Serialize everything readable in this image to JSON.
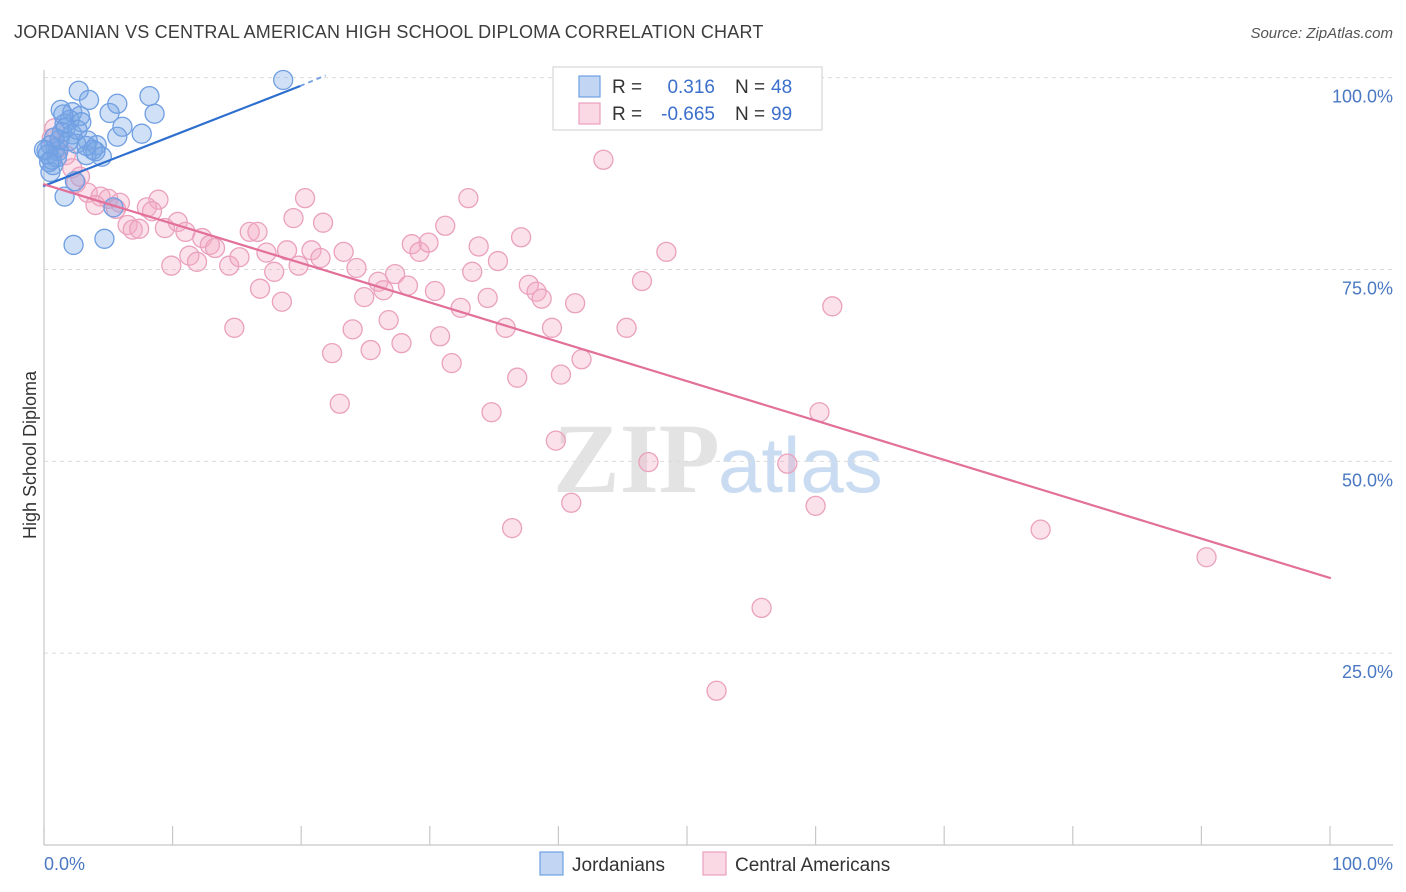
{
  "source": "Source: ZipAtlas.com",
  "watermark": {
    "zip": "ZIP",
    "atlas": "atlas"
  },
  "chart_data": {
    "type": "scatter",
    "title": "JORDANIAN VS CENTRAL AMERICAN HIGH SCHOOL DIPLOMA CORRELATION CHART",
    "xlabel": "",
    "ylabel": "High School Diploma",
    "xlim": [
      0,
      104.9
    ],
    "ylim": [
      0,
      101
    ],
    "grid": true,
    "x_ticks": [
      0,
      10,
      20,
      30,
      40,
      50,
      60,
      70,
      80,
      90,
      100
    ],
    "x_tick_labels": [
      {
        "value": 0,
        "label": "0.0%"
      },
      {
        "value": 100,
        "label": "100.0%"
      }
    ],
    "y_ticks": [
      {
        "value": 100,
        "label": "100.0%"
      },
      {
        "value": 75,
        "label": "75.0%"
      },
      {
        "value": 50,
        "label": "50.0%"
      },
      {
        "value": 25,
        "label": "25.0%"
      }
    ],
    "stats_labels": {
      "r": "R =",
      "n": "N ="
    },
    "series": [
      {
        "name": "Jordanians",
        "color": "#6f9fe2",
        "fill": "rgba(120,165,230,0.35)",
        "line_color": "#2d6fcf",
        "r": "0.316",
        "n": "48",
        "trend": {
          "start": [
            0,
            85.9
          ],
          "end": [
            19.9,
            98.9
          ],
          "dashed_end": [
            21.9,
            100.3
          ]
        },
        "points": [
          [
            18.6,
            99.7
          ],
          [
            2.7,
            98.3
          ],
          [
            8.2,
            97.6
          ],
          [
            3.5,
            97.1
          ],
          [
            5.7,
            96.6
          ],
          [
            1.3,
            95.8
          ],
          [
            2.2,
            95.5
          ],
          [
            5.1,
            95.4
          ],
          [
            8.6,
            95.3
          ],
          [
            2.8,
            95.0
          ],
          [
            2.0,
            94.5
          ],
          [
            1.6,
            94.0
          ],
          [
            2.9,
            94.2
          ],
          [
            6.1,
            93.6
          ],
          [
            1.4,
            92.9
          ],
          [
            5.7,
            92.3
          ],
          [
            7.6,
            92.7
          ],
          [
            2.2,
            92.6
          ],
          [
            3.4,
            91.8
          ],
          [
            2.5,
            91.4
          ],
          [
            4.1,
            91.2
          ],
          [
            0.5,
            91.2
          ],
          [
            0.9,
            90.8
          ],
          [
            3.8,
            90.6
          ],
          [
            0.2,
            90.5
          ],
          [
            3.3,
            89.9
          ],
          [
            4.5,
            89.7
          ],
          [
            1.1,
            90.4
          ],
          [
            0.7,
            88.6
          ],
          [
            0.5,
            87.7
          ],
          [
            2.4,
            86.5
          ],
          [
            1.6,
            84.5
          ],
          [
            5.4,
            83.1
          ],
          [
            4.7,
            79.0
          ],
          [
            2.3,
            78.2
          ],
          [
            0.6,
            89.3
          ],
          [
            1.2,
            91.9
          ],
          [
            0.3,
            90.0
          ],
          [
            0.8,
            92.2
          ],
          [
            1.7,
            93.5
          ],
          [
            4.0,
            90.4
          ],
          [
            1.9,
            91.7
          ],
          [
            1.0,
            89.6
          ],
          [
            0.0,
            90.6
          ],
          [
            0.4,
            89.0
          ],
          [
            2.6,
            93.2
          ],
          [
            1.5,
            95.2
          ],
          [
            3.3,
            91.1
          ]
        ]
      },
      {
        "name": "Central Americans",
        "color": "#eaa1bd",
        "fill": "rgba(244,170,196,0.35)",
        "line_color": "#e27099",
        "r": "-0.665",
        "n": "99",
        "trend": {
          "start": [
            0,
            86.1
          ],
          "end": [
            100,
            34.8
          ]
        },
        "points": [
          [
            49.1,
            99.7
          ],
          [
            43.0,
            96.2
          ],
          [
            43.5,
            89.3
          ],
          [
            0.6,
            92.1
          ],
          [
            1.1,
            90.8
          ],
          [
            1.7,
            89.9
          ],
          [
            2.2,
            88.2
          ],
          [
            2.8,
            87.1
          ],
          [
            2.5,
            86.3
          ],
          [
            3.4,
            85.0
          ],
          [
            4.4,
            84.5
          ],
          [
            5.0,
            84.2
          ],
          [
            4.0,
            83.4
          ],
          [
            5.9,
            83.7
          ],
          [
            5.6,
            82.9
          ],
          [
            8.9,
            84.1
          ],
          [
            8.0,
            83.1
          ],
          [
            8.4,
            82.6
          ],
          [
            20.3,
            84.3
          ],
          [
            33.0,
            84.3
          ],
          [
            6.5,
            80.8
          ],
          [
            6.9,
            80.2
          ],
          [
            7.4,
            80.3
          ],
          [
            9.4,
            80.4
          ],
          [
            10.4,
            81.2
          ],
          [
            11.0,
            79.9
          ],
          [
            19.4,
            81.7
          ],
          [
            21.7,
            81.1
          ],
          [
            31.2,
            80.7
          ],
          [
            16.0,
            79.9
          ],
          [
            16.6,
            79.9
          ],
          [
            12.3,
            79.1
          ],
          [
            12.9,
            78.2
          ],
          [
            13.3,
            77.8
          ],
          [
            11.3,
            76.8
          ],
          [
            11.9,
            76.0
          ],
          [
            9.9,
            75.5
          ],
          [
            14.4,
            75.5
          ],
          [
            15.2,
            76.6
          ],
          [
            17.3,
            77.2
          ],
          [
            18.9,
            77.5
          ],
          [
            20.8,
            77.5
          ],
          [
            19.8,
            75.5
          ],
          [
            23.3,
            77.3
          ],
          [
            28.6,
            78.3
          ],
          [
            29.2,
            77.3
          ],
          [
            29.9,
            78.5
          ],
          [
            33.8,
            78.0
          ],
          [
            37.1,
            79.2
          ],
          [
            48.4,
            77.3
          ],
          [
            21.5,
            76.5
          ],
          [
            24.3,
            75.2
          ],
          [
            33.3,
            74.7
          ],
          [
            35.3,
            76.1
          ],
          [
            27.3,
            74.4
          ],
          [
            17.9,
            74.7
          ],
          [
            26.0,
            73.4
          ],
          [
            26.4,
            72.3
          ],
          [
            28.3,
            72.9
          ],
          [
            37.7,
            73.0
          ],
          [
            38.3,
            72.1
          ],
          [
            46.5,
            73.5
          ],
          [
            16.8,
            72.5
          ],
          [
            24.9,
            71.4
          ],
          [
            30.4,
            72.2
          ],
          [
            34.5,
            71.3
          ],
          [
            38.7,
            71.2
          ],
          [
            18.5,
            70.8
          ],
          [
            41.3,
            70.6
          ],
          [
            32.4,
            70.0
          ],
          [
            61.3,
            70.2
          ],
          [
            26.8,
            68.4
          ],
          [
            14.8,
            67.4
          ],
          [
            24.0,
            67.2
          ],
          [
            35.9,
            67.4
          ],
          [
            39.5,
            67.4
          ],
          [
            45.3,
            67.4
          ],
          [
            30.8,
            66.3
          ],
          [
            27.8,
            65.4
          ],
          [
            22.4,
            64.1
          ],
          [
            25.4,
            64.5
          ],
          [
            41.8,
            63.3
          ],
          [
            31.7,
            62.8
          ],
          [
            36.8,
            60.9
          ],
          [
            40.2,
            61.3
          ],
          [
            23.0,
            57.5
          ],
          [
            34.8,
            56.4
          ],
          [
            60.3,
            56.4
          ],
          [
            39.8,
            52.7
          ],
          [
            47.0,
            49.9
          ],
          [
            57.8,
            49.7
          ],
          [
            41.0,
            44.6
          ],
          [
            60.0,
            44.2
          ],
          [
            36.4,
            41.3
          ],
          [
            77.5,
            41.1
          ],
          [
            90.4,
            37.5
          ],
          [
            55.8,
            30.9
          ],
          [
            52.3,
            20.1
          ],
          [
            0.8,
            93.4
          ]
        ]
      }
    ]
  }
}
